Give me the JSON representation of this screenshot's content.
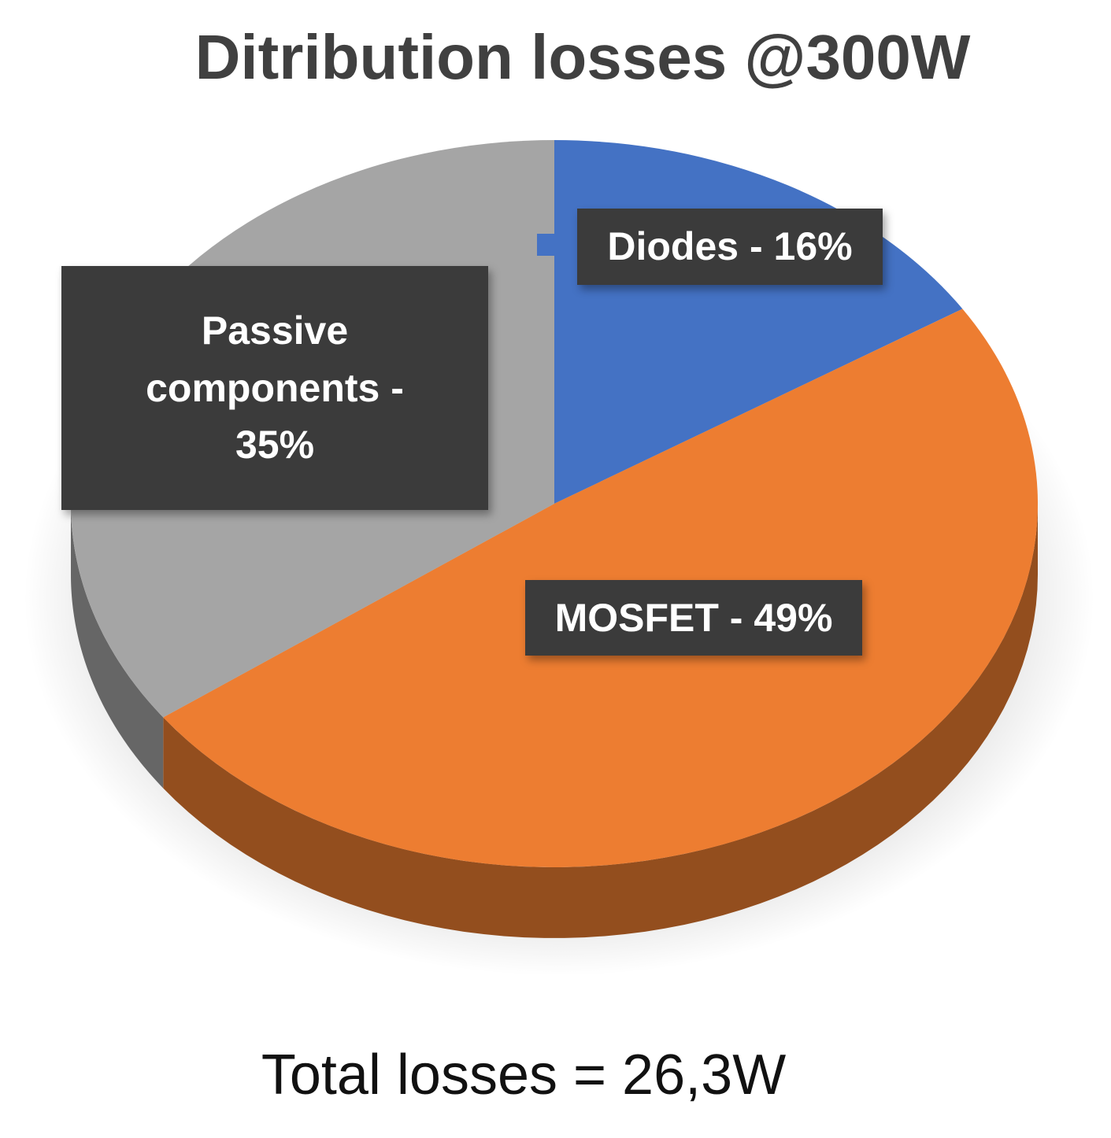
{
  "chart_data": {
    "type": "pie",
    "title": "Ditribution losses @300W",
    "values": [
      16,
      49,
      35
    ],
    "value_labels": [
      "Diodes - 16%",
      "MOSFET - 49%",
      "Passive components - 35%"
    ],
    "colors": [
      "#4472c4",
      "#ed7d31",
      "#a5a5a5"
    ],
    "annotation": "Total losses = 26,3W"
  }
}
